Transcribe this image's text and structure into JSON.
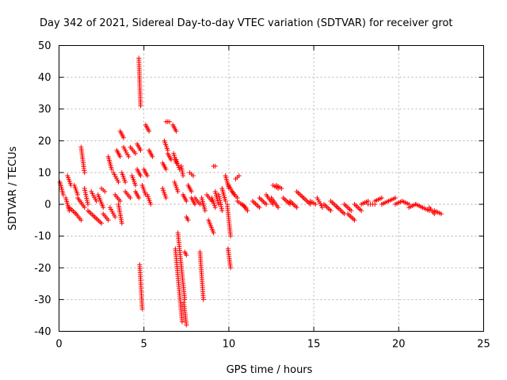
{
  "chart_data": {
    "type": "scatter",
    "title": "Day 342 of 2021, Sidereal Day-to-day VTEC variation (SDTVAR) for receiver grot",
    "xlabel": "GPS time / hours",
    "ylabel": "SDTVAR / TECUs",
    "xlim": [
      0,
      25
    ],
    "ylim": [
      -40,
      50
    ],
    "xticks": [
      0,
      5,
      10,
      15,
      20,
      25
    ],
    "yticks": [
      -40,
      -30,
      -20,
      -10,
      0,
      10,
      20,
      30,
      40,
      50
    ],
    "grid": true,
    "marker": "+",
    "color": "#ff0000",
    "segments": [
      {
        "x0": 0.05,
        "x1": 0.25,
        "y0": 7,
        "y1": 3
      },
      {
        "x0": 0.4,
        "x1": 0.6,
        "y0": 2,
        "y1": -2
      },
      {
        "x0": 0.5,
        "x1": 0.7,
        "y0": 9,
        "y1": 6
      },
      {
        "x0": 0.6,
        "x1": 1.0,
        "y0": -1,
        "y1": -3
      },
      {
        "x0": 0.9,
        "x1": 1.1,
        "y0": 6,
        "y1": 3
      },
      {
        "x0": 1.0,
        "x1": 1.3,
        "y0": -3,
        "y1": -5
      },
      {
        "x0": 1.1,
        "x1": 1.5,
        "y0": 2,
        "y1": -1
      },
      {
        "x0": 1.3,
        "x1": 1.5,
        "y0": 18,
        "y1": 10
      },
      {
        "x0": 1.5,
        "x1": 1.7,
        "y0": 5,
        "y1": 0
      },
      {
        "x0": 1.7,
        "x1": 2.1,
        "y0": -2,
        "y1": -4
      },
      {
        "x0": 1.9,
        "x1": 2.2,
        "y0": 4,
        "y1": 1
      },
      {
        "x0": 2.1,
        "x1": 2.5,
        "y0": -4,
        "y1": -6
      },
      {
        "x0": 2.3,
        "x1": 2.6,
        "y0": 3,
        "y1": -1
      },
      {
        "x0": 2.5,
        "x1": 2.7,
        "y0": 5,
        "y1": 4
      },
      {
        "x0": 2.6,
        "x1": 2.9,
        "y0": -3,
        "y1": -5
      },
      {
        "x0": 2.9,
        "x1": 3.1,
        "y0": 15,
        "y1": 11
      },
      {
        "x0": 3.0,
        "x1": 3.3,
        "y0": -1,
        "y1": -4
      },
      {
        "x0": 3.2,
        "x1": 3.5,
        "y0": 10,
        "y1": 7
      },
      {
        "x0": 3.3,
        "x1": 3.6,
        "y0": 3,
        "y1": 1
      },
      {
        "x0": 3.4,
        "x1": 3.6,
        "y0": 17,
        "y1": 15
      },
      {
        "x0": 3.5,
        "x1": 3.7,
        "y0": 0,
        "y1": -6
      },
      {
        "x0": 3.6,
        "x1": 3.8,
        "y0": 23,
        "y1": 21
      },
      {
        "x0": 3.7,
        "x1": 3.9,
        "y0": 10,
        "y1": 7
      },
      {
        "x0": 3.8,
        "x1": 4.1,
        "y0": 18,
        "y1": 15
      },
      {
        "x0": 3.9,
        "x1": 4.2,
        "y0": 4,
        "y1": 2
      },
      {
        "x0": 4.2,
        "x1": 4.5,
        "y0": 18,
        "y1": 16
      },
      {
        "x0": 4.3,
        "x1": 4.5,
        "y0": 9,
        "y1": 6
      },
      {
        "x0": 4.5,
        "x1": 4.7,
        "y0": 4,
        "y1": 2
      },
      {
        "x0": 4.6,
        "x1": 4.8,
        "y0": 11,
        "y1": 9
      },
      {
        "x0": 4.6,
        "x1": 4.8,
        "y0": 19,
        "y1": 17
      },
      {
        "x0": 4.7,
        "x1": 4.8,
        "y0": 46,
        "y1": 31
      },
      {
        "x0": 4.75,
        "x1": 4.9,
        "y0": -19,
        "y1": -33
      },
      {
        "x0": 4.9,
        "x1": 5.1,
        "y0": 6,
        "y1": 3
      },
      {
        "x0": 5.0,
        "x1": 5.2,
        "y0": 11,
        "y1": 9
      },
      {
        "x0": 5.1,
        "x1": 5.3,
        "y0": 25,
        "y1": 23
      },
      {
        "x0": 5.2,
        "x1": 5.4,
        "y0": 3,
        "y1": 0
      },
      {
        "x0": 5.3,
        "x1": 5.5,
        "y0": 17,
        "y1": 15
      },
      {
        "x0": 6.1,
        "x1": 6.3,
        "y0": 5,
        "y1": 2
      },
      {
        "x0": 6.1,
        "x1": 6.3,
        "y0": 13,
        "y1": 11
      },
      {
        "x0": 6.2,
        "x1": 6.4,
        "y0": 20,
        "y1": 17
      },
      {
        "x0": 6.3,
        "x1": 6.5,
        "y0": 26,
        "y1": 26
      },
      {
        "x0": 6.4,
        "x1": 6.6,
        "y0": 16,
        "y1": 14
      },
      {
        "x0": 6.7,
        "x1": 6.9,
        "y0": 25,
        "y1": 23
      },
      {
        "x0": 6.75,
        "x1": 6.9,
        "y0": 16,
        "y1": 13
      },
      {
        "x0": 6.8,
        "x1": 7.0,
        "y0": 7,
        "y1": 4
      },
      {
        "x0": 6.9,
        "x1": 7.1,
        "y0": 14,
        "y1": 11
      },
      {
        "x0": 6.85,
        "x1": 7.25,
        "y0": -14,
        "y1": -37
      },
      {
        "x0": 7.0,
        "x1": 7.4,
        "y0": -9,
        "y1": -30
      },
      {
        "x0": 7.2,
        "x1": 7.3,
        "y0": 12,
        "y1": 9
      },
      {
        "x0": 7.3,
        "x1": 7.5,
        "y0": 3,
        "y1": 1
      },
      {
        "x0": 7.35,
        "x1": 7.5,
        "y0": -31,
        "y1": -38
      },
      {
        "x0": 7.4,
        "x1": 7.5,
        "y0": -15,
        "y1": -16
      },
      {
        "x0": 7.5,
        "x1": 7.6,
        "y0": -4,
        "y1": -5
      },
      {
        "x0": 7.6,
        "x1": 7.8,
        "y0": 6,
        "y1": 4
      },
      {
        "x0": 7.7,
        "x1": 7.9,
        "y0": 10,
        "y1": 9
      },
      {
        "x0": 7.8,
        "x1": 8.0,
        "y0": 2,
        "y1": 0
      },
      {
        "x0": 8.0,
        "x1": 8.3,
        "y0": 2,
        "y1": 0
      },
      {
        "x0": 8.3,
        "x1": 8.5,
        "y0": -15,
        "y1": -30
      },
      {
        "x0": 8.4,
        "x1": 8.6,
        "y0": 2,
        "y1": -2
      },
      {
        "x0": 8.7,
        "x1": 9.0,
        "y0": 3,
        "y1": 1
      },
      {
        "x0": 8.8,
        "x1": 9.1,
        "y0": -5,
        "y1": -9
      },
      {
        "x0": 9.0,
        "x1": 9.2,
        "y0": 2,
        "y1": -1
      },
      {
        "x0": 9.2,
        "x1": 9.4,
        "y0": 4,
        "y1": 0
      },
      {
        "x0": 9.1,
        "x1": 9.2,
        "y0": 12,
        "y1": 12
      },
      {
        "x0": 9.4,
        "x1": 9.6,
        "y0": 3,
        "y1": -2
      },
      {
        "x0": 9.6,
        "x1": 9.8,
        "y0": 5,
        "y1": 1
      },
      {
        "x0": 9.8,
        "x1": 10.0,
        "y0": 9,
        "y1": 5
      },
      {
        "x0": 9.9,
        "x1": 10.1,
        "y0": 0,
        "y1": -10
      },
      {
        "x0": 9.95,
        "x1": 10.1,
        "y0": -14,
        "y1": -20
      },
      {
        "x0": 10.0,
        "x1": 10.3,
        "y0": 6,
        "y1": 3
      },
      {
        "x0": 10.2,
        "x1": 10.5,
        "y0": 4,
        "y1": 2
      },
      {
        "x0": 10.4,
        "x1": 10.6,
        "y0": 8,
        "y1": 9
      },
      {
        "x0": 10.5,
        "x1": 11.0,
        "y0": 1,
        "y1": -1
      },
      {
        "x0": 10.8,
        "x1": 11.1,
        "y0": 0,
        "y1": -2
      },
      {
        "x0": 11.4,
        "x1": 11.8,
        "y0": 1,
        "y1": -1
      },
      {
        "x0": 11.8,
        "x1": 12.2,
        "y0": 2,
        "y1": 0
      },
      {
        "x0": 12.2,
        "x1": 12.6,
        "y0": 3,
        "y1": 0
      },
      {
        "x0": 12.5,
        "x1": 12.9,
        "y0": 2,
        "y1": -1
      },
      {
        "x0": 12.6,
        "x1": 12.9,
        "y0": 6,
        "y1": 5
      },
      {
        "x0": 12.8,
        "x1": 13.1,
        "y0": 6,
        "y1": 5
      },
      {
        "x0": 13.2,
        "x1": 13.6,
        "y0": 2,
        "y1": 0
      },
      {
        "x0": 13.6,
        "x1": 14.0,
        "y0": 1,
        "y1": -1
      },
      {
        "x0": 14.0,
        "x1": 14.4,
        "y0": 4,
        "y1": 2
      },
      {
        "x0": 14.4,
        "x1": 14.8,
        "y0": 2,
        "y1": 0
      },
      {
        "x0": 14.8,
        "x1": 15.1,
        "y0": 1,
        "y1": 0
      },
      {
        "x0": 15.2,
        "x1": 15.5,
        "y0": 2,
        "y1": -1
      },
      {
        "x0": 15.6,
        "x1": 16.0,
        "y0": 0,
        "y1": -2
      },
      {
        "x0": 16.0,
        "x1": 16.4,
        "y0": 1,
        "y1": -1
      },
      {
        "x0": 16.4,
        "x1": 16.8,
        "y0": -1,
        "y1": -3
      },
      {
        "x0": 16.8,
        "x1": 17.2,
        "y0": 0,
        "y1": -2
      },
      {
        "x0": 17.0,
        "x1": 17.4,
        "y0": -3,
        "y1": -5
      },
      {
        "x0": 17.4,
        "x1": 17.8,
        "y0": 0,
        "y1": -2
      },
      {
        "x0": 17.8,
        "x1": 18.2,
        "y0": 0,
        "y1": 1
      },
      {
        "x0": 18.2,
        "x1": 18.6,
        "y0": 0,
        "y1": 0
      },
      {
        "x0": 18.6,
        "x1": 19.0,
        "y0": 1,
        "y1": 2
      },
      {
        "x0": 19.0,
        "x1": 19.4,
        "y0": 0,
        "y1": 1
      },
      {
        "x0": 19.4,
        "x1": 19.8,
        "y0": 1,
        "y1": 2
      },
      {
        "x0": 19.8,
        "x1": 20.2,
        "y0": 0,
        "y1": 1
      },
      {
        "x0": 20.2,
        "x1": 20.6,
        "y0": 1,
        "y1": 0
      },
      {
        "x0": 20.6,
        "x1": 21.0,
        "y0": -1,
        "y1": 0
      },
      {
        "x0": 21.0,
        "x1": 21.4,
        "y0": 0,
        "y1": -1
      },
      {
        "x0": 21.4,
        "x1": 21.8,
        "y0": -1,
        "y1": -2
      },
      {
        "x0": 21.8,
        "x1": 22.1,
        "y0": -1,
        "y1": -3
      },
      {
        "x0": 22.1,
        "x1": 22.5,
        "y0": -2,
        "y1": -3
      }
    ]
  }
}
